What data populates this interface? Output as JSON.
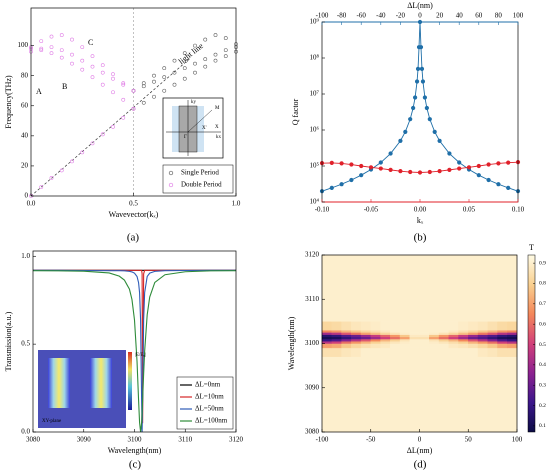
{
  "chart_data": [
    {
      "type": "scatter",
      "label": "(a)",
      "xlabel": "Wavevector(kₓ)",
      "ylabel": "Frequency(THz)",
      "xlim": [
        0,
        1
      ],
      "xticks": [
        {
          "value": 0,
          "label": "0.0"
        },
        0.5,
        {
          "value": 1,
          "label": "1.0"
        }
      ],
      "ylim": [
        0,
        125
      ],
      "yticks": [
        0,
        20,
        40,
        60,
        80,
        100
      ],
      "legend": "lower right",
      "series": [
        {
          "name": "Single Period",
          "color": "#606060",
          "marker": "open",
          "x": [
            0.5,
            0.55,
            0.6,
            0.65,
            0.7,
            0.75,
            0.8,
            0.85,
            0.9,
            0.95,
            1,
            null,
            0.5,
            0.55,
            0.6,
            0.65,
            0.7,
            0.75,
            0.8,
            0.85,
            0.9,
            0.95,
            1,
            null,
            0.5,
            0.55,
            0.6,
            0.65,
            0.7,
            0.75,
            0.8,
            0.85,
            0.9,
            0.95,
            1
          ],
          "values": [
            70,
            75,
            80,
            85,
            90,
            95,
            100,
            104,
            107,
            105,
            101,
            null,
            70,
            73,
            76,
            79,
            82,
            85,
            88,
            91,
            94,
            97,
            99,
            null,
            58,
            62,
            66,
            70,
            74,
            78,
            82,
            86,
            90,
            93,
            96
          ]
        },
        {
          "name": "Double Period",
          "color": "#e07ee6",
          "marker": "open",
          "x": [
            0,
            0.05,
            0.1,
            0.15,
            0.2,
            0.25,
            0.3,
            0.35,
            0.4,
            0.45,
            0.5,
            null,
            0,
            0.05,
            0.1,
            0.15,
            0.2,
            0.25,
            0.3,
            0.35,
            0.4,
            0.45,
            0.5,
            null,
            0,
            0.05,
            0.1,
            0.15,
            0.2,
            0.25,
            0.3,
            0.35,
            0.4,
            0.45,
            0.5,
            null,
            0,
            0.05,
            0.1,
            0.15,
            0.2,
            0.25,
            0.3,
            0.35,
            0.4,
            0.45,
            0.5
          ],
          "values": [
            0,
            6,
            12,
            17,
            23,
            29,
            35,
            41,
            46,
            52,
            58,
            null,
            98,
            97,
            95,
            92,
            88,
            84,
            79,
            74,
            69,
            64,
            58,
            null,
            96,
            98,
            99,
            97,
            94,
            90,
            86,
            82,
            78,
            74,
            70,
            null,
            99,
            103,
            106,
            107,
            104,
            99,
            93,
            87,
            81,
            75,
            70
          ]
        }
      ],
      "lines": [
        {
          "color": "#333333",
          "dash": true,
          "x": [
            0,
            0.78
          ],
          "values": [
            0,
            92
          ]
        }
      ],
      "vlines": [
        0.5
      ],
      "annotations": [
        "A",
        "B",
        "C",
        "light line"
      ],
      "inset_labels": [
        "ky",
        "M",
        "X",
        "X'",
        "Γ",
        "kx"
      ]
    },
    {
      "type": "scatter",
      "label": "(b)",
      "xlabel": "kₓ",
      "ylabel": "Q factor",
      "x2label": "ΔL(nm)",
      "connected": true,
      "xlim": [
        -0.1,
        0.1
      ],
      "xticks": [
        {
          "value": -0.1,
          "label": "-0.10"
        },
        {
          "value": -0.05,
          "label": "-0.05"
        },
        {
          "value": 0,
          "label": "0.00"
        },
        0.05,
        {
          "value": 0.1,
          "label": "0.10"
        }
      ],
      "x2lim": [
        -100,
        100
      ],
      "x2ticks": [
        -100,
        -80,
        -60,
        -40,
        -20,
        0,
        20,
        40,
        60,
        80,
        100
      ],
      "ylog": true,
      "ylim": [
        10000,
        1000000000
      ],
      "yticks": [
        {
          "value": 10000,
          "label": "10⁴"
        },
        {
          "value": 100000,
          "label": "10⁵"
        },
        {
          "value": 1000000,
          "label": "10⁶"
        },
        {
          "value": 10000000,
          "label": "10⁷"
        },
        {
          "value": 100000000,
          "label": "10⁸"
        },
        {
          "value": 1000000000,
          "label": "10⁹"
        }
      ],
      "series": [
        {
          "color": "#1f6fa8",
          "marker": "filled",
          "axis": "x2",
          "x": [
            -100,
            -90,
            -80,
            -70,
            -60,
            -50,
            -40,
            -30,
            -20,
            -15,
            -10,
            -7,
            -5,
            -3,
            -2,
            -1,
            0,
            1,
            2,
            3,
            5,
            7,
            10,
            15,
            20,
            30,
            40,
            50,
            60,
            70,
            80,
            90,
            100
          ],
          "values": [
            20000,
            24700,
            31200,
            40800,
            55600,
            80000,
            125000,
            222000,
            500000,
            889000,
            2000000,
            4080000,
            8000000,
            22200000,
            50000000,
            200000000,
            1000000000,
            200000000,
            50000000,
            22200000,
            8000000,
            4080000,
            2000000,
            889000,
            500000,
            222000,
            125000,
            80000,
            55600,
            40800,
            31200,
            24700,
            20000
          ]
        },
        {
          "color": "#e0202a",
          "marker": "filled",
          "x": [
            -0.1,
            -0.09,
            -0.08,
            -0.07,
            -0.06,
            -0.05,
            -0.04,
            -0.03,
            -0.02,
            -0.01,
            0,
            0.01,
            0.02,
            0.03,
            0.04,
            0.05,
            0.06,
            0.07,
            0.08,
            0.09,
            0.1
          ],
          "values": [
            120000,
            122000,
            118000,
            110000,
            100000,
            92000,
            85000,
            78000,
            72000,
            68000,
            66000,
            68000,
            72000,
            78000,
            85000,
            92000,
            100000,
            110000,
            118000,
            124000,
            128000
          ]
        }
      ]
    },
    {
      "type": "line",
      "label": "(c)",
      "xlabel": "Wavelength(nm)",
      "ylabel": "Transmission(a.u.)",
      "xlim": [
        3080,
        3120
      ],
      "xticks": [
        3080,
        3090,
        3100,
        3110,
        3120
      ],
      "ylim": [
        0,
        1.03
      ],
      "yticks": [
        {
          "value": 0,
          "label": "0.0"
        },
        0.5,
        {
          "value": 1,
          "label": "1.0"
        }
      ],
      "legend": "lower right",
      "x": [
        3080,
        3085,
        3090,
        3095,
        3097,
        3098,
        3099,
        3099.5,
        3100,
        3100.5,
        3100.8,
        3101,
        3101.2,
        3101.4,
        3101.5,
        3101.6,
        3101.8,
        3102,
        3102.5,
        3103,
        3104,
        3106,
        3110,
        3115,
        3120
      ],
      "series": [
        {
          "name": "ΔL=0nm",
          "color": "#000000",
          "values": [
            0.92,
            0.92,
            0.92,
            0.92,
            0.92,
            0.92,
            0.92,
            0.92,
            0.92,
            0.92,
            0.92,
            0.92,
            0.92,
            0.92,
            0.92,
            0.92,
            0.92,
            0.92,
            0.92,
            0.92,
            0.92,
            0.92,
            0.92,
            0.92,
            0.92
          ]
        },
        {
          "name": "ΔL=10nm",
          "color": "#d62728",
          "values": [
            0.92,
            0.92,
            0.92,
            0.92,
            0.92,
            0.92,
            0.92,
            0.92,
            0.92,
            0.92,
            0.92,
            0.92,
            0.92,
            0.92,
            0.9,
            0.05,
            0.9,
            0.92,
            0.92,
            0.92,
            0.92,
            0.92,
            0.92,
            0.92,
            0.92
          ]
        },
        {
          "name": "ΔL=50nm",
          "color": "#2f5cb8",
          "values": [
            0.92,
            0.92,
            0.919,
            0.918,
            0.918,
            0.917,
            0.914,
            0.911,
            0.904,
            0.885,
            0.85,
            0.793,
            0.637,
            0.184,
            0,
            0.184,
            0.637,
            0.793,
            0.885,
            0.904,
            0.914,
            0.918,
            0.919,
            0.92,
            0.92
          ]
        },
        {
          "name": "ΔL=100nm",
          "color": "#2e8b3a",
          "values": [
            0.918,
            0.917,
            0.915,
            0.905,
            0.887,
            0.865,
            0.813,
            0.754,
            0.637,
            0.4,
            0.184,
            0.054,
            0,
            0.054,
            0.113,
            0.184,
            0.331,
            0.46,
            0.667,
            0.768,
            0.851,
            0.895,
            0.912,
            0.917,
            0.918
          ]
        }
      ],
      "inset_labels": [
        "|E/E₀|",
        "XY-plane"
      ]
    },
    {
      "type": "heatmap",
      "label": "(d)",
      "xlabel": "ΔL(nm)",
      "ylabel": "Wavelength(nm)",
      "clabel": "T",
      "xlim": [
        -100,
        100
      ],
      "xticks": [
        -100,
        -50,
        0,
        50,
        100
      ],
      "ylim": [
        3080,
        3120
      ],
      "yticks": [
        3080,
        3090,
        3100,
        3110,
        3120
      ],
      "zlim": [
        0.07,
        0.94
      ],
      "cticks": [
        0.1,
        0.2,
        0.3,
        0.4,
        0.5,
        0.6,
        0.7,
        0.8,
        0.9
      ],
      "colormap": [
        "#0c0c45",
        "#3b168a",
        "#8c2290",
        "#d2407a",
        "#f4875a",
        "#f9d090",
        "#fffbe4"
      ],
      "xbins": [
        -100,
        -90,
        -80,
        -70,
        -60,
        -50,
        -40,
        -30,
        -20,
        -10,
        0,
        10,
        20,
        30,
        40,
        50,
        60,
        70,
        80,
        90,
        100
      ],
      "ybins": [
        3080,
        3097,
        3099,
        3100,
        3100.5,
        3101,
        3101.5,
        3102,
        3102.5,
        3103,
        3105,
        3120
      ],
      "z": [
        [
          0.9,
          0.9,
          0.9,
          0.9,
          0.9,
          0.9,
          0.9,
          0.9,
          0.9,
          0.9,
          0.9,
          0.9,
          0.9,
          0.9,
          0.9,
          0.9,
          0.9,
          0.9,
          0.9,
          0.9
        ],
        [
          0.85,
          0.85,
          0.87,
          0.88,
          0.9,
          0.9,
          0.9,
          0.9,
          0.9,
          0.9,
          0.9,
          0.9,
          0.9,
          0.9,
          0.9,
          0.9,
          0.88,
          0.87,
          0.85,
          0.85
        ],
        [
          0.7,
          0.72,
          0.78,
          0.82,
          0.85,
          0.87,
          0.88,
          0.9,
          0.9,
          0.9,
          0.9,
          0.9,
          0.9,
          0.88,
          0.87,
          0.85,
          0.82,
          0.78,
          0.72,
          0.7
        ],
        [
          0.45,
          0.5,
          0.6,
          0.68,
          0.74,
          0.8,
          0.84,
          0.87,
          0.89,
          0.9,
          0.9,
          0.89,
          0.87,
          0.84,
          0.8,
          0.74,
          0.68,
          0.6,
          0.5,
          0.45
        ],
        [
          0.2,
          0.25,
          0.35,
          0.45,
          0.55,
          0.65,
          0.74,
          0.8,
          0.86,
          0.9,
          0.9,
          0.86,
          0.8,
          0.74,
          0.65,
          0.55,
          0.45,
          0.35,
          0.25,
          0.2
        ],
        [
          0.1,
          0.12,
          0.18,
          0.25,
          0.3,
          0.4,
          0.5,
          0.6,
          0.7,
          0.85,
          0.85,
          0.7,
          0.6,
          0.5,
          0.4,
          0.3,
          0.25,
          0.18,
          0.12,
          0.1
        ],
        [
          0.15,
          0.18,
          0.25,
          0.3,
          0.38,
          0.48,
          0.58,
          0.68,
          0.78,
          0.88,
          0.88,
          0.78,
          0.68,
          0.58,
          0.48,
          0.38,
          0.3,
          0.25,
          0.18,
          0.15
        ],
        [
          0.4,
          0.45,
          0.55,
          0.62,
          0.7,
          0.76,
          0.82,
          0.86,
          0.89,
          0.9,
          0.9,
          0.89,
          0.86,
          0.82,
          0.76,
          0.7,
          0.62,
          0.55,
          0.45,
          0.4
        ],
        [
          0.65,
          0.68,
          0.74,
          0.78,
          0.82,
          0.85,
          0.88,
          0.9,
          0.9,
          0.9,
          0.9,
          0.9,
          0.9,
          0.88,
          0.85,
          0.82,
          0.78,
          0.74,
          0.68,
          0.65
        ],
        [
          0.82,
          0.83,
          0.85,
          0.87,
          0.88,
          0.89,
          0.9,
          0.9,
          0.9,
          0.9,
          0.9,
          0.9,
          0.9,
          0.9,
          0.89,
          0.88,
          0.87,
          0.85,
          0.83,
          0.82
        ],
        [
          0.9,
          0.9,
          0.9,
          0.9,
          0.9,
          0.9,
          0.9,
          0.9,
          0.9,
          0.9,
          0.9,
          0.9,
          0.9,
          0.9,
          0.9,
          0.9,
          0.9,
          0.9,
          0.9,
          0.9
        ]
      ]
    }
  ]
}
